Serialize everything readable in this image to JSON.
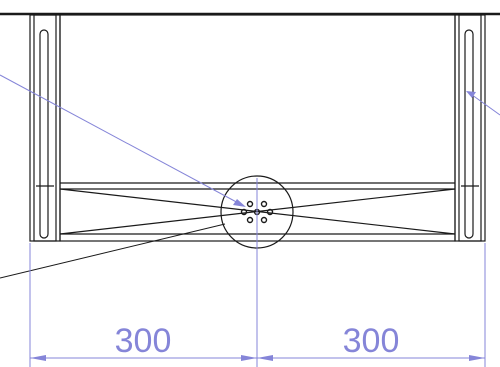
{
  "drawing": {
    "dimensions": [
      {
        "label": "300"
      },
      {
        "label": "300"
      }
    ],
    "colors": {
      "outline": "#1a1a1a",
      "dimension": "#8585d8",
      "background": "#ffffff"
    }
  }
}
